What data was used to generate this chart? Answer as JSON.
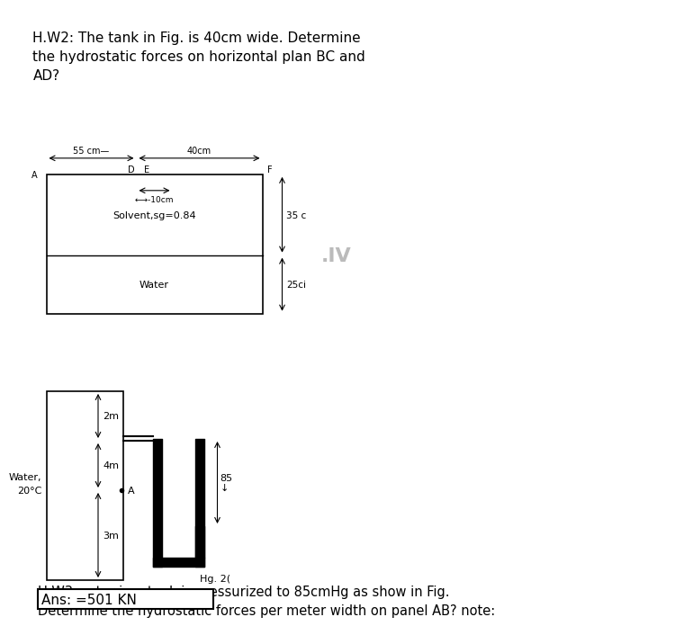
{
  "hw2_title": "H.W2: The tank in Fig. is 40cm wide. Determine\nthe hydrostatic forces on horizontal plan BC and\nAD?",
  "hw3_title": "H.W3 water in a tank is pressurized to 85cmHg as show in Fig.\nDetermine the hydrostatic forces per meter width on panel AB? note:",
  "ans_text": "Ans: =501 KN",
  "dim_55": "55 cm—",
  "dim_40": "40cm",
  "dim_10": "←→-10cm",
  "dim_35": "35 c",
  "dim_25": "25ci",
  "label_D": "D",
  "label_E": "E",
  "label_F": "F",
  "label_A_top": "A",
  "label_solvent": "Solvent,sg=0.84",
  "label_water_top": "Water",
  "label_water2": "Water,\n20°C",
  "label_hg": "Hg. 2(",
  "label_2m": "2m",
  "label_4m": "4m",
  "label_3m": "3m",
  "label_85": "85",
  "label_IV": ".IV",
  "top_bg": "#c8d0d8",
  "sep_bg": "#f0e0b0",
  "bot_bg": "#ffffff"
}
